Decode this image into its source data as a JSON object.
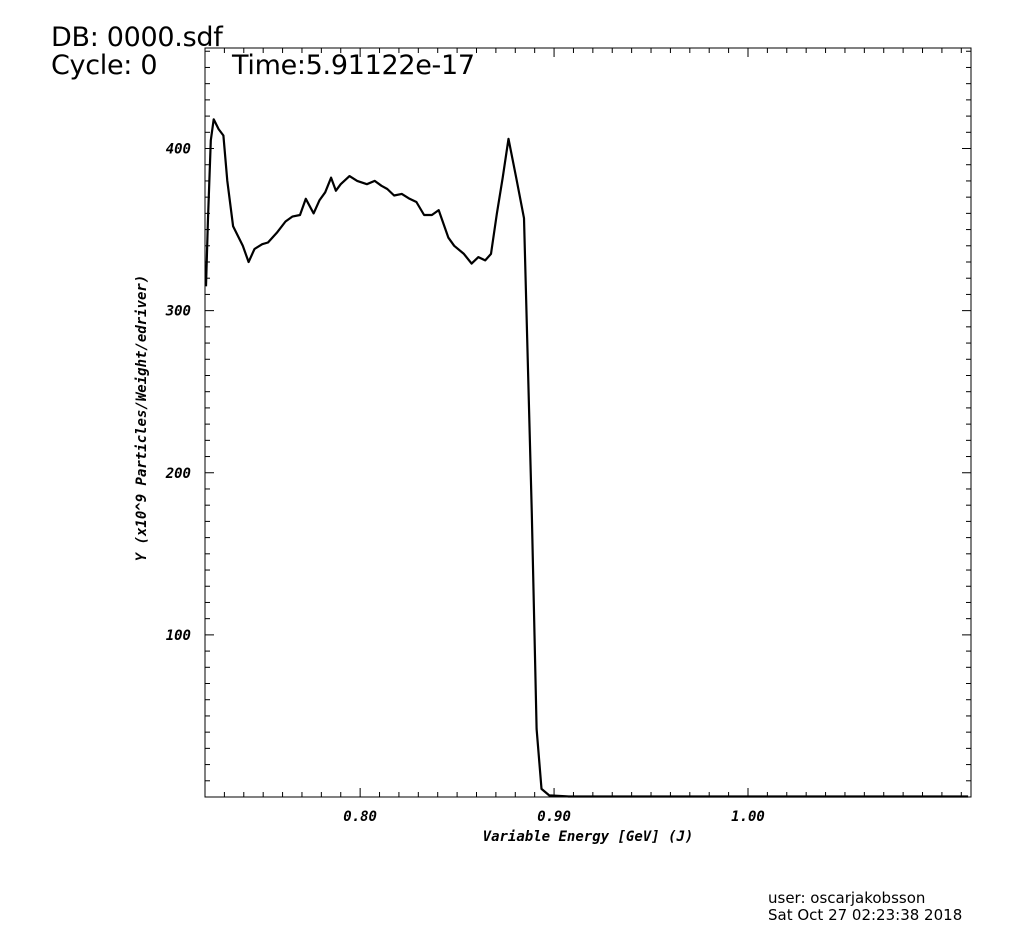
{
  "header": {
    "db": "DB: 0000.sdf",
    "cycle": "Cycle: 0",
    "time": "Time:5.91122e-17"
  },
  "footer": {
    "user": "user: oscarjakobsson",
    "date": "Sat Oct 27 02:23:38 2018"
  },
  "chart_data": {
    "type": "line",
    "xlabel": "Variable Energy [GeV] (J)",
    "ylabel": "Y (x10^9 Particles/Weight/edriver)",
    "xlim": [
      0.72,
      1.115
    ],
    "ylim": [
      0,
      462
    ],
    "xticks": [
      0.8,
      0.9,
      1.0
    ],
    "xtick_labels": [
      "0.80",
      "0.90",
      "1.00"
    ],
    "yticks": [
      100,
      200,
      300,
      400
    ],
    "ytick_labels": [
      "100",
      "200",
      "300",
      "400"
    ],
    "grid": false,
    "series": [
      {
        "color": "#000000",
        "x": [
          0.7205,
          0.7215,
          0.723,
          0.7245,
          0.727,
          0.7295,
          0.7315,
          0.7345,
          0.7395,
          0.7425,
          0.7455,
          0.7495,
          0.7525,
          0.757,
          0.7615,
          0.765,
          0.769,
          0.772,
          0.776,
          0.779,
          0.782,
          0.785,
          0.7875,
          0.79,
          0.7945,
          0.7985,
          0.8035,
          0.8075,
          0.811,
          0.814,
          0.8175,
          0.8215,
          0.8255,
          0.829,
          0.833,
          0.837,
          0.8405,
          0.8455,
          0.8485,
          0.8535,
          0.8575,
          0.861,
          0.8645,
          0.8675,
          0.8705,
          0.8735,
          0.8765,
          0.8805,
          0.8845,
          0.8885,
          0.891,
          0.8935,
          0.8975,
          0.9055,
          0.9075,
          0.9125,
          0.9165,
          0.9285,
          0.9505,
          1.0,
          1.05,
          1.1135
        ],
        "y": [
          315,
          355,
          405,
          418,
          412,
          408,
          380,
          352,
          340,
          330,
          338,
          341,
          342,
          348,
          355,
          358,
          359,
          369,
          360,
          368,
          373,
          382,
          374,
          378,
          383,
          380,
          378,
          380,
          377,
          375,
          371,
          372,
          369,
          367,
          359,
          359,
          362,
          345,
          340,
          335,
          329,
          333,
          331,
          335,
          360,
          382,
          406,
          382,
          357,
          175,
          42,
          5,
          1,
          0.5,
          0.3,
          0.3,
          0.3,
          0.3,
          0.3,
          0.3,
          0.3,
          0.3
        ]
      }
    ]
  }
}
